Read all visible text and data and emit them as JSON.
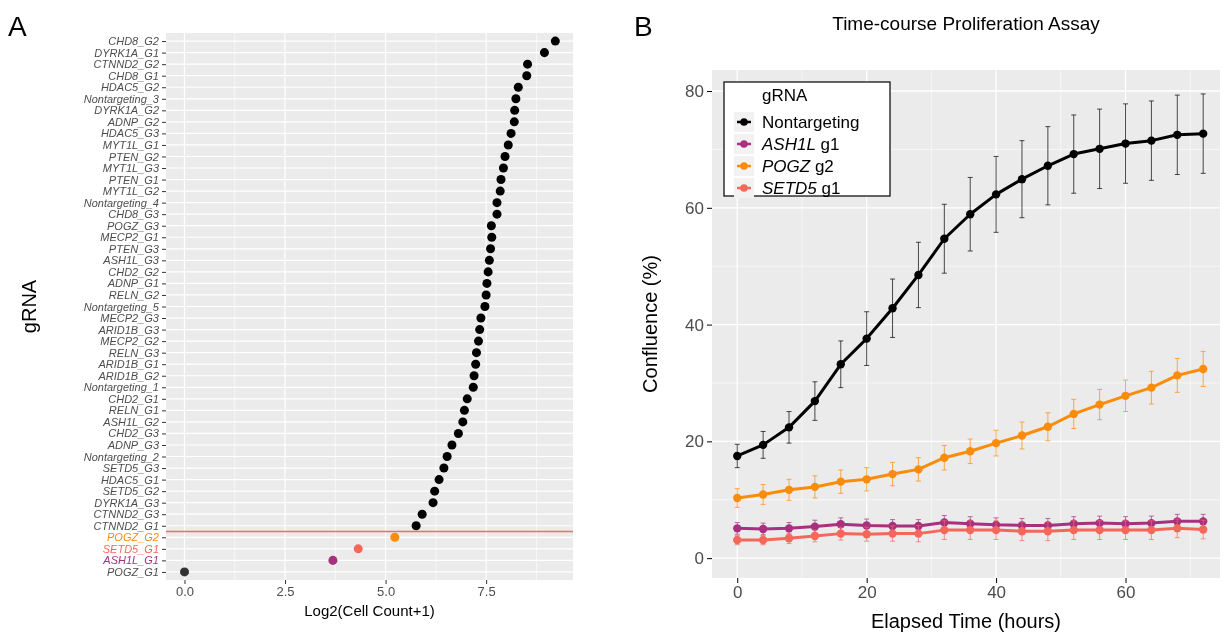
{
  "chart_data": [
    {
      "type": "scatter",
      "annotations": [
        "A"
      ],
      "xlabel": "Log2(Cell Count+1)",
      "ylabel": "gRNA",
      "orientation": "horizontal",
      "grid": true,
      "marker": "circle",
      "categories": [
        "CHD8_G2",
        "DYRK1A_G1",
        "CTNND2_G2",
        "CHD8_G1",
        "HDAC5_G2",
        "Nontargeting_3",
        "DYRK1A_G2",
        "ADNP_G2",
        "HDAC5_G3",
        "MYT1L_G1",
        "PTEN_G2",
        "MYT1L_G3",
        "PTEN_G1",
        "MYT1L_G2",
        "Nontargeting_4",
        "CHD8_G3",
        "POGZ_G3",
        "MECP2_G1",
        "PTEN_G3",
        "ASH1L_G3",
        "CHD2_G2",
        "ADNP_G1",
        "RELN_G2",
        "Nontargeting_5",
        "MECP2_G3",
        "ARID1B_G3",
        "MECP2_G2",
        "RELN_G3",
        "ARID1B_G1",
        "ARID1B_G2",
        "Nontargeting_1",
        "CHD2_G1",
        "RELN_G1",
        "ASH1L_G2",
        "CHD2_G3",
        "ADNP_G3",
        "Nontargeting_2",
        "SETD5_G3",
        "HDAC5_G1",
        "SETD5_G2",
        "DYRK1A_G3",
        "CTNND2_G3",
        "CTNND2_G1",
        "POGZ_G2",
        "SETD5_G1",
        "ASH1L_G1",
        "POGZ_G1"
      ],
      "values": [
        9.22,
        8.95,
        8.53,
        8.51,
        8.3,
        8.24,
        8.21,
        8.2,
        8.12,
        8.05,
        7.97,
        7.93,
        7.87,
        7.85,
        7.77,
        7.77,
        7.63,
        7.64,
        7.61,
        7.58,
        7.55,
        7.52,
        7.5,
        7.47,
        7.37,
        7.34,
        7.31,
        7.26,
        7.24,
        7.2,
        7.18,
        7.03,
        6.96,
        6.92,
        6.81,
        6.65,
        6.53,
        6.45,
        6.33,
        6.22,
        6.18,
        5.91,
        5.76,
        5.23,
        4.32,
        3.69,
        0
      ],
      "colors": [
        "#000000",
        "#000000",
        "#000000",
        "#000000",
        "#000000",
        "#000000",
        "#000000",
        "#000000",
        "#000000",
        "#000000",
        "#000000",
        "#000000",
        "#000000",
        "#000000",
        "#000000",
        "#000000",
        "#000000",
        "#000000",
        "#000000",
        "#000000",
        "#000000",
        "#000000",
        "#000000",
        "#000000",
        "#000000",
        "#000000",
        "#000000",
        "#000000",
        "#000000",
        "#000000",
        "#000000",
        "#000000",
        "#000000",
        "#000000",
        "#000000",
        "#000000",
        "#000000",
        "#000000",
        "#000000",
        "#000000",
        "#000000",
        "#000000",
        "#000000",
        "#f98c0a",
        "#f4685c",
        "#a8307f",
        "#333333"
      ],
      "xlim": [
        -0.46,
        9.66
      ],
      "xticks": [
        {
          "value": 0,
          "label": "0.0"
        },
        2.5,
        {
          "value": 5,
          "label": "5.0"
        },
        7.5
      ],
      "ref_lines": [
        {
          "axis": "y",
          "value": "CTNND2_G1",
          "color": "#f26b6b"
        }
      ]
    },
    {
      "type": "line",
      "title": "Time-course Proliferation Assay",
      "annotations": [
        "B"
      ],
      "xlabel": "Elapsed Time (hours)",
      "ylabel": "Confluence (%)",
      "legend_title": "gRNA",
      "legend": "top left",
      "grid": true,
      "marker": "circle",
      "line_style": "solid",
      "x": [
        0,
        4,
        8,
        12,
        16,
        20,
        24,
        28,
        32,
        36,
        40,
        44,
        48,
        52,
        56,
        60,
        64,
        68,
        72
      ],
      "xlim": [
        -3.9,
        74.6
      ],
      "xticks": [
        0,
        20,
        40,
        60
      ],
      "ylim": [
        -3.4,
        83.6
      ],
      "yticks": [
        0,
        20,
        40,
        60,
        80
      ],
      "series": [
        {
          "name": "Nontargeting",
          "color": "#000000",
          "values": [
            17.5,
            19.4,
            22.4,
            26.9,
            33.2,
            37.6,
            42.8,
            48.5,
            54.7,
            58.9,
            62.3,
            64.9,
            67.2,
            69.2,
            70.1,
            71.0,
            71.5,
            72.5,
            72.7
          ],
          "errors": [
            2,
            2.3,
            2.7,
            3.3,
            4.0,
            4.6,
            5.0,
            5.6,
            5.9,
            6.3,
            6.5,
            6.6,
            6.7,
            6.7,
            6.8,
            6.8,
            6.8,
            6.8,
            6.8
          ]
        },
        {
          "name": "ASH1L g1",
          "color": "#a8307f",
          "values": [
            5.1,
            5.0,
            5.1,
            5.4,
            5.8,
            5.6,
            5.5,
            5.5,
            6.1,
            5.9,
            5.7,
            5.6,
            5.6,
            5.9,
            6.0,
            5.9,
            6.0,
            6.3,
            6.3
          ],
          "errors": [
            1.0,
            1.0,
            1.0,
            1.1,
            1.1,
            1.1,
            1.1,
            1.1,
            1.2,
            1.2,
            1.2,
            1.2,
            1.2,
            1.2,
            1.2,
            1.2,
            1.2,
            1.2,
            1.2
          ]
        },
        {
          "name": "POGZ g2",
          "color": "#f98c0a",
          "values": [
            10.3,
            10.9,
            11.7,
            12.2,
            13.1,
            13.5,
            14.4,
            15.2,
            17.2,
            18.3,
            19.7,
            21.0,
            22.5,
            24.7,
            26.3,
            27.8,
            29.2,
            31.3,
            32.4
          ],
          "errors": [
            1.6,
            1.7,
            1.8,
            1.9,
            2.0,
            2.0,
            2.0,
            2.0,
            2.1,
            2.1,
            2.2,
            2.3,
            2.4,
            2.5,
            2.6,
            2.7,
            2.8,
            2.9,
            3.0
          ]
        },
        {
          "name": "SETD5 g1",
          "color": "#f4685c",
          "values": [
            3.1,
            3.1,
            3.4,
            3.8,
            4.2,
            4.1,
            4.2,
            4.2,
            4.8,
            4.8,
            4.8,
            4.6,
            4.6,
            4.8,
            4.8,
            4.8,
            4.8,
            5.1,
            4.9
          ],
          "errors": [
            0.8,
            0.8,
            0.9,
            1.0,
            1.1,
            1.2,
            1.3,
            1.4,
            1.6,
            1.6,
            1.6,
            1.6,
            1.6,
            1.6,
            1.6,
            1.6,
            1.6,
            1.6,
            1.6
          ]
        }
      ]
    }
  ]
}
